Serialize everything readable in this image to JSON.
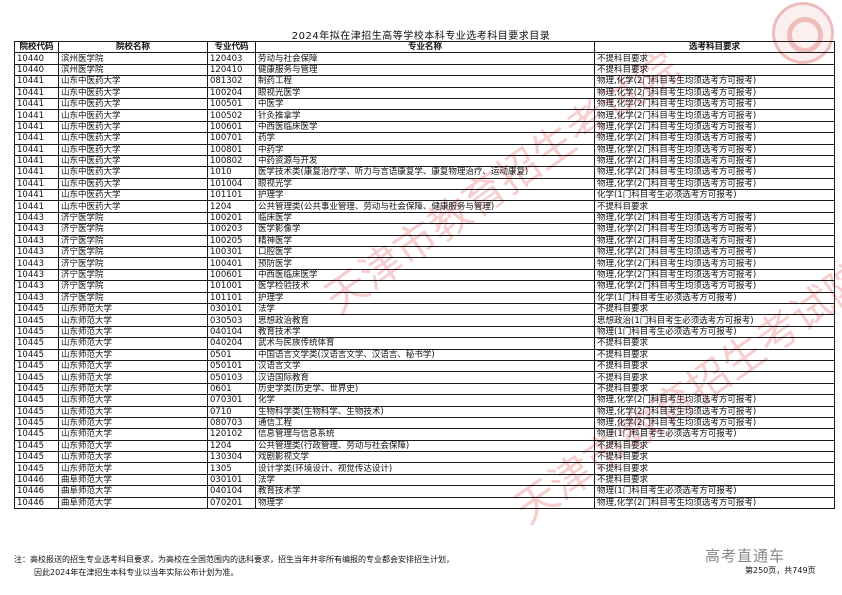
{
  "title": "2024年拟在津招生高等学校本科专业选考科目要求目录",
  "columns": [
    "院校代码",
    "院校名称",
    "专业代码",
    "专业名称",
    "选考科目要求"
  ],
  "rows": [
    [
      "10440",
      "滨州医学院",
      "120403",
      "劳动与社会保障",
      "不提科目要求"
    ],
    [
      "10440",
      "滨州医学院",
      "120410",
      "健康服务与管理",
      "不提科目要求"
    ],
    [
      "10441",
      "山东中医药大学",
      "081302",
      "制药工程",
      "物理,化学(2门科目考生均须选考方可报考)"
    ],
    [
      "10441",
      "山东中医药大学",
      "100204",
      "眼视光医学",
      "物理,化学(2门科目考生均须选考方可报考)"
    ],
    [
      "10441",
      "山东中医药大学",
      "100501",
      "中医学",
      "物理,化学(2门科目考生均须选考方可报考)"
    ],
    [
      "10441",
      "山东中医药大学",
      "100502",
      "针灸推拿学",
      "物理,化学(2门科目考生均须选考方可报考)"
    ],
    [
      "10441",
      "山东中医药大学",
      "100601",
      "中西医临床医学",
      "物理,化学(2门科目考生均须选考方可报考)"
    ],
    [
      "10441",
      "山东中医药大学",
      "100701",
      "药学",
      "物理,化学(2门科目考生均须选考方可报考)"
    ],
    [
      "10441",
      "山东中医药大学",
      "100801",
      "中药学",
      "物理,化学(2门科目考生均须选考方可报考)"
    ],
    [
      "10441",
      "山东中医药大学",
      "100802",
      "中药资源与开发",
      "物理,化学(2门科目考生均须选考方可报考)"
    ],
    [
      "10441",
      "山东中医药大学",
      "1010",
      "医学技术类(康复治疗学、听力与言语康复学、康复物理治疗、运动康复)",
      "物理,化学(2门科目考生均须选考方可报考)"
    ],
    [
      "10441",
      "山东中医药大学",
      "101004",
      "眼视光学",
      "物理,化学(2门科目考生均须选考方可报考)"
    ],
    [
      "10441",
      "山东中医药大学",
      "101101",
      "护理学",
      "化学(1门科目考生必须选考方可报考)"
    ],
    [
      "10441",
      "山东中医药大学",
      "1204",
      "公共管理类(公共事业管理、劳动与社会保障、健康服务与管理)",
      "不提科目要求"
    ],
    [
      "10443",
      "济宁医学院",
      "100201",
      "临床医学",
      "物理,化学(2门科目考生均须选考方可报考)"
    ],
    [
      "10443",
      "济宁医学院",
      "100203",
      "医学影像学",
      "物理,化学(2门科目考生均须选考方可报考)"
    ],
    [
      "10443",
      "济宁医学院",
      "100205",
      "精神医学",
      "物理,化学(2门科目考生均须选考方可报考)"
    ],
    [
      "10443",
      "济宁医学院",
      "100301",
      "口腔医学",
      "物理,化学(2门科目考生均须选考方可报考)"
    ],
    [
      "10443",
      "济宁医学院",
      "100401",
      "预防医学",
      "物理,化学(2门科目考生均须选考方可报考)"
    ],
    [
      "10443",
      "济宁医学院",
      "100601",
      "中西医临床医学",
      "物理,化学(2门科目考生均须选考方可报考)"
    ],
    [
      "10443",
      "济宁医学院",
      "101001",
      "医学检验技术",
      "物理,化学(2门科目考生均须选考方可报考)"
    ],
    [
      "10443",
      "济宁医学院",
      "101101",
      "护理学",
      "化学(1门科目考生必须选考方可报考)"
    ],
    [
      "10445",
      "山东师范大学",
      "030101",
      "法学",
      "不提科目要求"
    ],
    [
      "10445",
      "山东师范大学",
      "030503",
      "思想政治教育",
      "思想政治(1门科目考生必须选考方可报考)"
    ],
    [
      "10445",
      "山东师范大学",
      "040104",
      "教育技术学",
      "物理(1门科目考生必须选考方可报考)"
    ],
    [
      "10445",
      "山东师范大学",
      "040204",
      "武术与民族传统体育",
      "不提科目要求"
    ],
    [
      "10445",
      "山东师范大学",
      "0501",
      "中国语言文学类(汉语言文学、汉语言、秘书学)",
      "不提科目要求"
    ],
    [
      "10445",
      "山东师范大学",
      "050101",
      "汉语言文学",
      "不提科目要求"
    ],
    [
      "10445",
      "山东师范大学",
      "050103",
      "汉语国际教育",
      "不提科目要求"
    ],
    [
      "10445",
      "山东师范大学",
      "0601",
      "历史学类(历史学、世界史)",
      "不提科目要求"
    ],
    [
      "10445",
      "山东师范大学",
      "070301",
      "化学",
      "物理,化学(2门科目考生均须选考方可报考)"
    ],
    [
      "10445",
      "山东师范大学",
      "0710",
      "生物科学类(生物科学、生物技术)",
      "物理,化学(2门科目考生均须选考方可报考)"
    ],
    [
      "10445",
      "山东师范大学",
      "080703",
      "通信工程",
      "物理,化学(2门科目考生均须选考方可报考)"
    ],
    [
      "10445",
      "山东师范大学",
      "120102",
      "信息管理与信息系统",
      "物理(1门科目考生必须选考方可报考)"
    ],
    [
      "10445",
      "山东师范大学",
      "1204",
      "公共管理类(行政管理、劳动与社会保障)",
      "不提科目要求"
    ],
    [
      "10445",
      "山东师范大学",
      "130304",
      "戏剧影视文学",
      "不提科目要求"
    ],
    [
      "10445",
      "山东师范大学",
      "1305",
      "设计学类(环境设计、视觉传达设计)",
      "不提科目要求"
    ],
    [
      "10446",
      "曲阜师范大学",
      "030101",
      "法学",
      "不提科目要求"
    ],
    [
      "10446",
      "曲阜师范大学",
      "040104",
      "教育技术学",
      "物理(1门科目考生必须选考方可报考)"
    ],
    [
      "10446",
      "曲阜师范大学",
      "070201",
      "物理学",
      "物理,化学(2门科目考生均须选考方可报考)"
    ]
  ],
  "note": {
    "line1": "注：高校报送的招生专业选考科目要求，为高校在全国范围内的选科要求，招生当年并非所有编报的专业都会安排招生计划，",
    "line2": "因此2024年在津招生本科专业以当年实际公布计划为准。"
  },
  "brand": "高考直通车",
  "page_info": "第250页，共749页",
  "watermark": "天津市教育招生考试院",
  "colors": {
    "watermark": "#dc3c3c",
    "border": "#1a1a1a"
  }
}
